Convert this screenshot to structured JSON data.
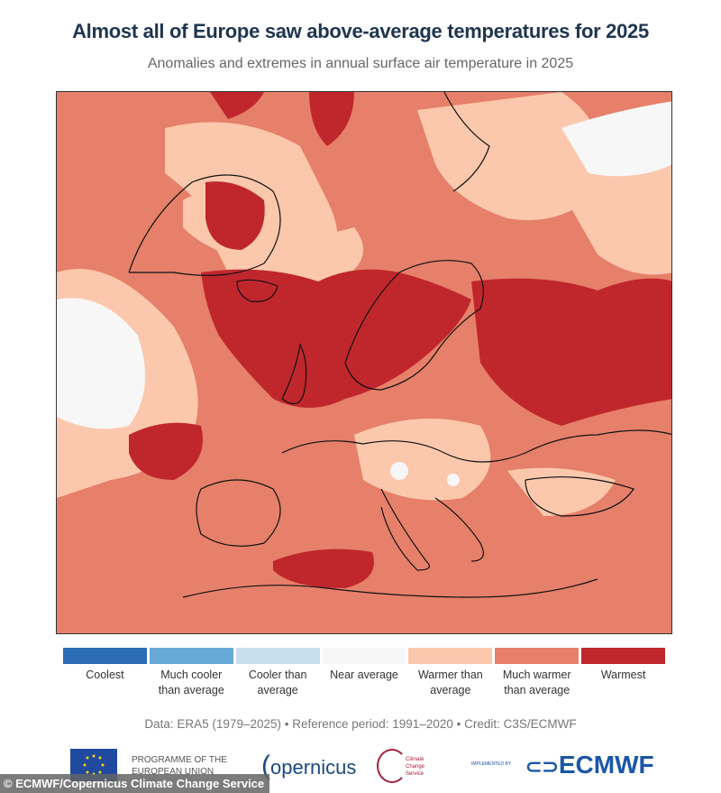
{
  "title": "Almost all of Europe saw above-average temperatures for 2025",
  "subtitle": "Anomalies and extremes in annual surface air temperature in 2025",
  "legend": [
    {
      "label": "Coolest",
      "color": "#2c6db5"
    },
    {
      "label": "Much cooler than average",
      "color": "#67a9d6"
    },
    {
      "label": "Cooler than average",
      "color": "#c8dff0"
    },
    {
      "label": "Near average",
      "color": "#f7f7f7"
    },
    {
      "label": "Warmer than average",
      "color": "#fbc8ad"
    },
    {
      "label": "Much warmer than average",
      "color": "#e6806a"
    },
    {
      "label": "Warmest",
      "color": "#c0272d"
    }
  ],
  "credit": "Data: ERA5 (1979–2025) • Reference period: 1991–2020 • Credit: C3S/ECMWF",
  "logos": {
    "eu": "PROGRAMME OF THE EUROPEAN UNION",
    "copernicus": "opernicus",
    "ccs": "Climate Change Service",
    "implemented": "IMPLEMENTED BY",
    "ecmwf": "ECMWF"
  },
  "watermark": "© ECMWF/Copernicus Climate Change Service"
}
